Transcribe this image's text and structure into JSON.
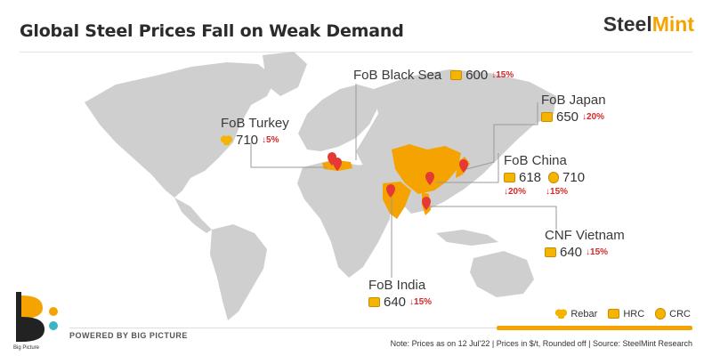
{
  "header": {
    "title": "Global Steel Prices Fall on Weak Demand",
    "logo_text_a": "Steel",
    "logo_text_b": "Mint"
  },
  "colors": {
    "land": "#cfcfcf",
    "highlight": "#f5a300",
    "accent_red": "#d62828",
    "pin": "#e53935"
  },
  "markets": [
    {
      "name": "FoB Turkey",
      "items": [
        {
          "product": "Rebar",
          "price": "710",
          "change": "↓5%"
        }
      ]
    },
    {
      "name": "FoB Black Sea",
      "items": [
        {
          "product": "HRC",
          "price": "600",
          "change": "↓15%"
        }
      ]
    },
    {
      "name": "FoB Japan",
      "items": [
        {
          "product": "HRC",
          "price": "650",
          "change": "↓20%"
        }
      ]
    },
    {
      "name": "FoB China",
      "items": [
        {
          "product": "HRC",
          "price": "618",
          "change": "↓20%"
        },
        {
          "product": "CRC",
          "price": "710",
          "change": "↓15%"
        }
      ]
    },
    {
      "name": "CNF Vietnam",
      "items": [
        {
          "product": "HRC",
          "price": "640",
          "change": "↓15%"
        }
      ]
    },
    {
      "name": "FoB India",
      "items": [
        {
          "product": "HRC",
          "price": "640",
          "change": "↓15%"
        }
      ]
    }
  ],
  "legend": [
    {
      "label": "Rebar",
      "icon": "rebar-icon"
    },
    {
      "label": "HRC",
      "icon": "hrc-icon"
    },
    {
      "label": "CRC",
      "icon": "crc-icon"
    }
  ],
  "footer": {
    "powered_by": "POWERED BY BIG PICTURE",
    "brand_caption": "Big Picture",
    "note": "Note: Prices as on 12 Jul'22  |  Prices in $/t, Rounded off  |  Source: SteelMint Research"
  }
}
